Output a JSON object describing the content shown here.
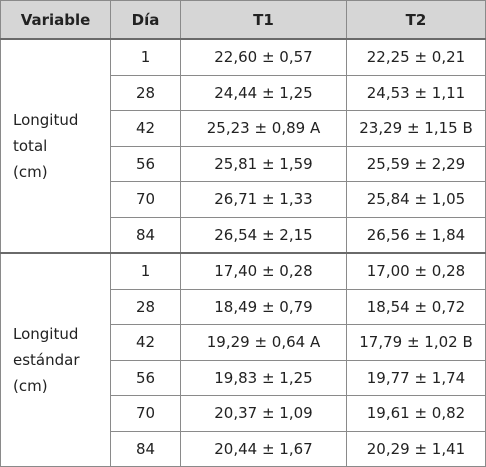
{
  "table": {
    "header": [
      "Variable",
      "Día",
      "T1",
      "T2"
    ],
    "groups": [
      {
        "variable": [
          "Longitud",
          "total",
          "(cm)"
        ],
        "rows": [
          [
            "1",
            "22,60 ± 0,57",
            "22,25 ± 0,21"
          ],
          [
            "28",
            "24,44 ± 1,25",
            "24,53 ± 1,11"
          ],
          [
            "42",
            "25,23 ± 0,89 A",
            "23,29 ± 1,15 B"
          ],
          [
            "56",
            "25,81 ± 1,59",
            "25,59 ± 2,29"
          ],
          [
            "70",
            "26,71 ± 1,33",
            "25,84 ± 1,05"
          ],
          [
            "84",
            "26,54 ± 2,15",
            "26,56 ± 1,84"
          ]
        ]
      },
      {
        "variable": [
          "Longitud",
          "estándar",
          "(cm)"
        ],
        "rows": [
          [
            "1",
            "17,40 ± 0,28",
            "17,00 ± 0,28"
          ],
          [
            "28",
            "18,49 ± 0,79",
            "18,54 ± 0,72"
          ],
          [
            "42",
            "19,29 ± 0,64 A",
            "17,79 ± 1,02 B"
          ],
          [
            "56",
            "19,83 ± 1,25",
            "19,77 ± 1,74"
          ],
          [
            "70",
            "20,37 ± 1,09",
            "19,61 ± 0,82"
          ],
          [
            "84",
            "20,44 ± 1,67",
            "20,29 ± 1,41"
          ]
        ]
      }
    ]
  }
}
